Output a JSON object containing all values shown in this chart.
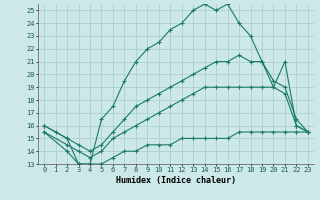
{
  "xlabel": "Humidex (Indice chaleur)",
  "bg_color": "#cce8e8",
  "grid_color": "#afd0ce",
  "line_color": "#1a7a6a",
  "xlim": [
    -0.5,
    23.5
  ],
  "ylim": [
    13,
    25.5
  ],
  "xticks": [
    0,
    1,
    2,
    3,
    4,
    5,
    6,
    7,
    8,
    9,
    10,
    11,
    12,
    13,
    14,
    15,
    16,
    17,
    18,
    19,
    20,
    21,
    22,
    23
  ],
  "yticks": [
    13,
    14,
    15,
    16,
    17,
    18,
    19,
    20,
    21,
    22,
    23,
    24,
    25
  ],
  "series": [
    {
      "x": [
        0,
        1,
        2,
        3,
        4,
        5,
        6,
        7,
        8,
        9,
        10,
        11,
        12,
        13,
        14,
        15,
        16,
        17,
        18,
        19,
        20,
        21,
        22,
        23
      ],
      "y": [
        16,
        15.5,
        15,
        13,
        13,
        16.5,
        17.5,
        19.5,
        21,
        22,
        22.5,
        23.5,
        24,
        25,
        25.5,
        25,
        25.5,
        24,
        23,
        21,
        19,
        21,
        16,
        15.5
      ]
    },
    {
      "x": [
        0,
        2,
        3,
        4,
        5,
        6,
        7,
        8,
        9,
        10,
        11,
        12,
        13,
        14,
        15,
        16,
        17,
        18,
        19,
        20,
        21,
        22,
        23
      ],
      "y": [
        16,
        15,
        14.5,
        14,
        14.5,
        15.5,
        16.5,
        17.5,
        18,
        18.5,
        19,
        19.5,
        20,
        20.5,
        21,
        21,
        21.5,
        21,
        21,
        19.5,
        19,
        16.5,
        15.5
      ]
    },
    {
      "x": [
        0,
        2,
        3,
        4,
        5,
        6,
        7,
        8,
        9,
        10,
        11,
        12,
        13,
        14,
        15,
        16,
        17,
        18,
        19,
        20,
        21,
        22,
        23
      ],
      "y": [
        15.5,
        14.5,
        14,
        13.5,
        14,
        15,
        15.5,
        16,
        16.5,
        17,
        17.5,
        18,
        18.5,
        19,
        19,
        19,
        19,
        19,
        19,
        19,
        18.5,
        16,
        15.5
      ]
    },
    {
      "x": [
        0,
        2,
        3,
        4,
        5,
        6,
        7,
        8,
        9,
        10,
        11,
        12,
        13,
        14,
        15,
        16,
        17,
        18,
        19,
        20,
        21,
        22,
        23
      ],
      "y": [
        15.5,
        14,
        13,
        13,
        13,
        13.5,
        14,
        14,
        14.5,
        14.5,
        14.5,
        15,
        15,
        15,
        15,
        15,
        15.5,
        15.5,
        15.5,
        15.5,
        15.5,
        15.5,
        15.5
      ]
    }
  ]
}
